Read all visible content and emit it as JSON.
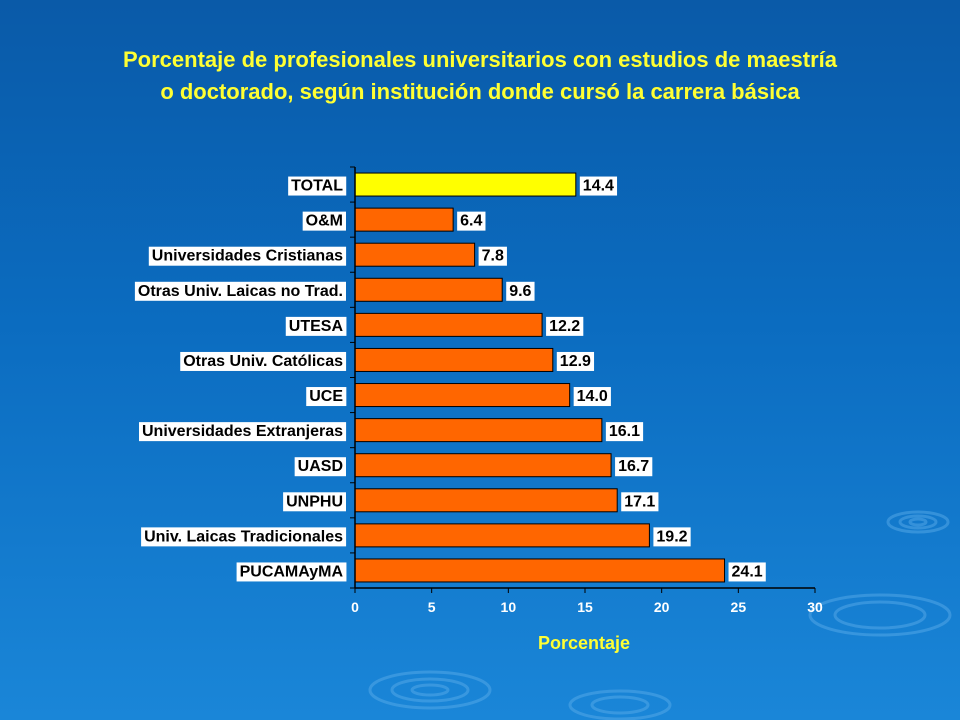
{
  "colors": {
    "background": "#0b6cc0",
    "title": "#ffff33",
    "bar": "#ff6600",
    "bar_highlight": "#ffff00",
    "bar_border": "#000000",
    "axis_title": "#ffff33",
    "tick_text": "#ffffff",
    "data_label_bg": "#ffffff",
    "category_label_bg": "#ffffff"
  },
  "chart_data": {
    "type": "bar",
    "orientation": "horizontal",
    "title": "Porcentaje de profesionales universitarios con estudios de maestría o doctorado, según institución donde cursó la carrera básica",
    "categories": [
      "TOTAL",
      "O&M",
      "Universidades Cristianas",
      "Otras Univ. Laicas no Trad.",
      "UTESA",
      "Otras Univ. Católicas",
      "UCE",
      "Universidades Extranjeras",
      "UASD",
      "UNPHU",
      "Univ. Laicas Tradicionales",
      "PUCAMAyMA"
    ],
    "values": [
      14.4,
      6.4,
      7.8,
      9.6,
      12.2,
      12.9,
      14.0,
      16.1,
      16.7,
      17.1,
      19.2,
      24.1
    ],
    "data_labels": [
      "14.4",
      "6.4",
      "7.8",
      "9.6",
      "12.2",
      "12.9",
      "14.0",
      "16.1",
      "16.7",
      "17.1",
      "19.2",
      "24.1"
    ],
    "highlight_index": 0,
    "xlabel": "Porcentaje",
    "ylabel": "",
    "xlim": [
      0,
      30
    ],
    "xticks": [
      0,
      5,
      10,
      15,
      20,
      25,
      30
    ],
    "xtick_labels": [
      "0",
      "5",
      "10",
      "15",
      "20",
      "25",
      "30"
    ],
    "grid": false,
    "legend": "none"
  }
}
